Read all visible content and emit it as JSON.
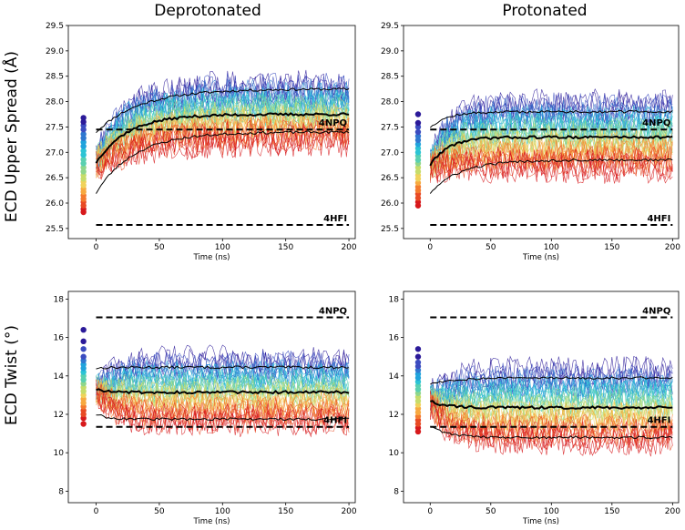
{
  "figure": {
    "col_titles": [
      "Deprotonated",
      "Protonated"
    ],
    "row_titles": [
      "ECD Upper Spread (Å)",
      "ECD Twist (°)"
    ]
  },
  "colors": {
    "palette": [
      "#2b1a99",
      "#3b4cc0",
      "#2f78d0",
      "#20a3dc",
      "#2cc4d4",
      "#5ad0b0",
      "#8fd68b",
      "#c6dc6a",
      "#f0d25a",
      "#f7a940",
      "#f47a2e",
      "#e84a24",
      "#d7191c"
    ],
    "mean_line": "#000000",
    "ref_line": "#000000"
  },
  "chart_data": [
    {
      "id": "dep-spread",
      "type": "line",
      "title": "Deprotonated",
      "ylabel": "ECD Upper Spread (Å)",
      "xlabel": "Time (ns)",
      "xlim": [
        -22,
        205
      ],
      "ylim": [
        25.3,
        29.5
      ],
      "xticks": [
        0,
        50,
        100,
        150,
        200
      ],
      "yticks": [
        25.5,
        26.0,
        26.5,
        27.0,
        27.5,
        28.0,
        28.5,
        29.0,
        29.5
      ],
      "ytick_labels": [
        "25.5",
        "26.0",
        "26.5",
        "27.0",
        "27.5",
        "28.0",
        "28.5",
        "29.0",
        "29.5"
      ],
      "reference_lines": [
        {
          "label": "4NPQ",
          "y": 27.45
        },
        {
          "label": "4HFI",
          "y": 25.57
        }
      ],
      "mean": {
        "start": 26.8,
        "plateau": 27.75,
        "tau": 25
      },
      "upper_band": {
        "start": 27.4,
        "plateau": 28.25,
        "tau": 35
      },
      "lower_band": {
        "start": 26.2,
        "plateau": 27.4,
        "tau": 30
      },
      "trace_count": 40,
      "trace_spread": 0.33,
      "trace_noise": 0.32,
      "initial_points_x": -10,
      "initial_points": [
        25.82,
        25.88,
        25.95,
        26.02,
        26.08,
        26.15,
        26.22,
        26.28,
        26.35,
        26.42,
        26.48,
        26.55,
        26.62,
        26.7,
        26.78,
        26.86,
        26.95,
        27.03,
        27.12,
        27.2,
        27.28,
        27.36,
        27.45,
        27.53,
        27.6,
        27.68
      ]
    },
    {
      "id": "pro-spread",
      "type": "line",
      "title": "Protonated",
      "ylabel": "",
      "xlabel": "Time (ns)",
      "xlim": [
        -22,
        205
      ],
      "ylim": [
        25.3,
        29.5
      ],
      "xticks": [
        0,
        50,
        100,
        150,
        200
      ],
      "yticks": [
        25.5,
        26.0,
        26.5,
        27.0,
        27.5,
        28.0,
        28.5,
        29.0,
        29.5
      ],
      "ytick_labels": [
        "25.5",
        "26.0",
        "26.5",
        "27.0",
        "27.5",
        "28.0",
        "28.5",
        "29.0",
        "29.5"
      ],
      "reference_lines": [
        {
          "label": "4NPQ",
          "y": 27.45
        },
        {
          "label": "4HFI",
          "y": 25.57
        }
      ],
      "mean": {
        "start": 26.75,
        "plateau": 27.3,
        "tau": 15
      },
      "upper_band": {
        "start": 27.5,
        "plateau": 27.8,
        "tau": 15
      },
      "lower_band": {
        "start": 26.2,
        "plateau": 26.85,
        "tau": 25
      },
      "trace_count": 40,
      "trace_spread": 0.38,
      "trace_noise": 0.32,
      "initial_points_x": -10,
      "initial_points": [
        25.95,
        26.02,
        26.1,
        26.18,
        26.25,
        26.32,
        26.4,
        26.48,
        26.55,
        26.62,
        26.7,
        26.78,
        26.85,
        26.93,
        27.0,
        27.08,
        27.16,
        27.24,
        27.32,
        27.4,
        27.5,
        27.58,
        27.75
      ]
    },
    {
      "id": "dep-twist",
      "type": "line",
      "title": "",
      "ylabel": "ECD Twist (°)",
      "xlabel": "Time (ns)",
      "xlim": [
        -22,
        205
      ],
      "ylim": [
        7.4,
        18.4
      ],
      "xticks": [
        0,
        50,
        100,
        150,
        200
      ],
      "yticks": [
        8,
        10,
        12,
        14,
        16,
        18
      ],
      "ytick_labels": [
        "8",
        "10",
        "12",
        "14",
        "16",
        "18"
      ],
      "reference_lines": [
        {
          "label": "4NPQ",
          "y": 17.05
        },
        {
          "label": "4HFI",
          "y": 11.35
        }
      ],
      "mean": {
        "start": 13.3,
        "plateau": 13.15,
        "tau": 10
      },
      "upper_band": {
        "start": 14.4,
        "plateau": 14.45,
        "tau": 10
      },
      "lower_band": {
        "start": 12.0,
        "plateau": 11.75,
        "tau": 10
      },
      "trace_count": 40,
      "trace_spread": 1.0,
      "trace_noise": 0.75,
      "initial_points_x": -10,
      "initial_points": [
        11.5,
        11.8,
        12.0,
        12.2,
        12.4,
        12.6,
        12.8,
        13.0,
        13.2,
        13.4,
        13.6,
        13.8,
        14.0,
        14.2,
        14.4,
        14.6,
        14.8,
        15.0,
        15.4,
        15.8,
        16.4
      ]
    },
    {
      "id": "pro-twist",
      "type": "line",
      "title": "",
      "ylabel": "",
      "xlabel": "Time (ns)",
      "xlim": [
        -22,
        205
      ],
      "ylim": [
        7.4,
        18.4
      ],
      "xticks": [
        0,
        50,
        100,
        150,
        200
      ],
      "yticks": [
        8,
        10,
        12,
        14,
        16,
        18
      ],
      "ytick_labels": [
        "8",
        "10",
        "12",
        "14",
        "16",
        "18"
      ],
      "reference_lines": [
        {
          "label": "4NPQ",
          "y": 17.05
        },
        {
          "label": "4HFI",
          "y": 11.35
        }
      ],
      "mean": {
        "start": 12.7,
        "plateau": 12.35,
        "tau": 12
      },
      "upper_band": {
        "start": 13.6,
        "plateau": 13.9,
        "tau": 20
      },
      "lower_band": {
        "start": 11.4,
        "plateau": 10.8,
        "tau": 15
      },
      "trace_count": 40,
      "trace_spread": 1.1,
      "trace_noise": 0.8,
      "initial_points_x": -10,
      "initial_points": [
        11.1,
        11.3,
        11.5,
        11.7,
        11.9,
        12.1,
        12.3,
        12.5,
        12.7,
        12.9,
        13.1,
        13.3,
        13.5,
        13.7,
        13.9,
        14.1,
        14.3,
        14.5,
        14.7,
        15.0,
        15.4
      ]
    }
  ]
}
